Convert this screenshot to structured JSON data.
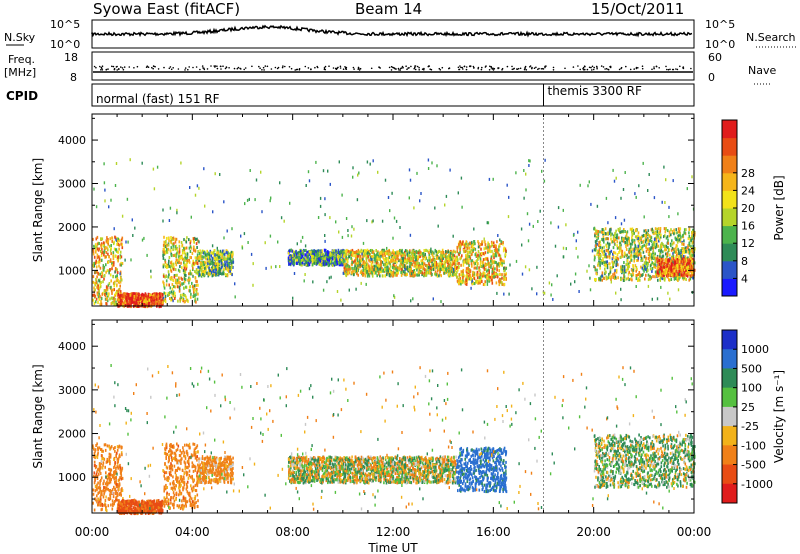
{
  "header": {
    "station": "Syowa East (fitACF)",
    "beam": "Beam 14",
    "date": "15/Oct/2011"
  },
  "strips": {
    "nsky_label": "N.Sky",
    "nsky_ticks": [
      "10^5",
      "10^0"
    ],
    "nsearch_label": "N.Search",
    "freq_label": "Freq.",
    "freq_unit": "[MHz]",
    "freq_ticks": [
      "18",
      "8"
    ],
    "nave_label": "Nave",
    "nave_ticks": [
      "60",
      "0"
    ],
    "cpid_label": "CPID",
    "cpid_modes": [
      "normal (fast) 151 RF",
      "themis 3300 RF"
    ]
  },
  "chart_data": [
    {
      "type": "heatmap",
      "title": "",
      "xlabel": "Time UT",
      "ylabel": "Slant Range [km]",
      "x_ticks": [
        "00:00",
        "04:00",
        "08:00",
        "12:00",
        "16:00",
        "20:00",
        "00:00"
      ],
      "xlim_hours": [
        0,
        24
      ],
      "y_ticks": [
        1000,
        2000,
        3000,
        4000
      ],
      "ylim": [
        180,
        4600
      ],
      "colorbar": {
        "label": "Power [dB]",
        "ticks": [
          "4",
          "8",
          "12",
          "16",
          "20",
          "24",
          "28"
        ],
        "range": [
          0,
          30
        ],
        "colors": [
          "#1a1aff",
          "#2b55c8",
          "#2e8b57",
          "#4cb34c",
          "#b5d42a",
          "#f2e21a",
          "#f5b51a",
          "#f08018",
          "#e84c14",
          "#e01c1c"
        ]
      },
      "mode_change_hour": 18.0,
      "echo_regions": [
        {
          "t": [
            0.0,
            1.2
          ],
          "r": [
            250,
            1800
          ],
          "value": 18
        },
        {
          "t": [
            1.0,
            2.8
          ],
          "r": [
            200,
            500
          ],
          "value": 26
        },
        {
          "t": [
            2.8,
            4.2
          ],
          "r": [
            300,
            1800
          ],
          "value": 16
        },
        {
          "t": [
            4.2,
            5.6
          ],
          "r": [
            900,
            1500
          ],
          "value": 12
        },
        {
          "t": [
            7.8,
            10.0
          ],
          "r": [
            1150,
            1500
          ],
          "value": 8
        },
        {
          "t": [
            10.0,
            14.5
          ],
          "r": [
            900,
            1500
          ],
          "value": 16
        },
        {
          "t": [
            14.5,
            16.5
          ],
          "r": [
            700,
            1700
          ],
          "value": 18
        },
        {
          "t": [
            20.0,
            24.0
          ],
          "r": [
            800,
            2000
          ],
          "value": 14
        },
        {
          "t": [
            22.5,
            24.0
          ],
          "r": [
            900,
            1300
          ],
          "value": 24
        }
      ]
    },
    {
      "type": "heatmap",
      "title": "",
      "xlabel": "Time UT",
      "ylabel": "Slant Range [km]",
      "x_ticks": [
        "00:00",
        "04:00",
        "08:00",
        "12:00",
        "16:00",
        "20:00",
        "00:00"
      ],
      "xlim_hours": [
        0,
        24
      ],
      "y_ticks": [
        1000,
        2000,
        3000,
        4000
      ],
      "ylim": [
        180,
        4600
      ],
      "colorbar": {
        "label": "Velocity [m s^-1]",
        "ticks": [
          "1000",
          "500",
          "100",
          "25",
          "-25",
          "-100",
          "-500",
          "-1000"
        ],
        "colors": [
          "#1c2fc8",
          "#2a6fd0",
          "#2e8b57",
          "#55c040",
          "#c8c8c8",
          "#f2b21a",
          "#f08018",
          "#e84c14",
          "#e01c1c"
        ]
      },
      "mode_change_hour": 18.0,
      "echo_regions": [
        {
          "t": [
            0.0,
            1.2
          ],
          "r": [
            250,
            1800
          ],
          "value": -300
        },
        {
          "t": [
            1.0,
            2.8
          ],
          "r": [
            200,
            500
          ],
          "value": -600
        },
        {
          "t": [
            2.8,
            4.2
          ],
          "r": [
            300,
            1800
          ],
          "value": -300
        },
        {
          "t": [
            4.2,
            5.6
          ],
          "r": [
            900,
            1500
          ],
          "value": -200
        },
        {
          "t": [
            7.8,
            14.5
          ],
          "r": [
            900,
            1500
          ],
          "value": 0
        },
        {
          "t": [
            14.5,
            16.5
          ],
          "r": [
            700,
            1700
          ],
          "value": 700
        },
        {
          "t": [
            20.0,
            24.0
          ],
          "r": [
            800,
            2000
          ],
          "value": 100
        }
      ]
    }
  ]
}
